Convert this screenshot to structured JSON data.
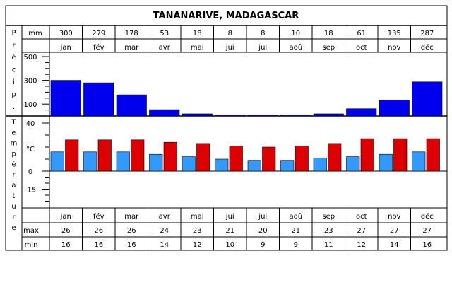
{
  "chart_data": [
    {
      "type": "bar",
      "title": "TANANARIVE, MADAGASCAR",
      "side_label": "Précip.",
      "unit": "mm",
      "categories": [
        "jan",
        "fév",
        "mar",
        "avr",
        "mai",
        "jui",
        "jul",
        "aoû",
        "sep",
        "oct",
        "nov",
        "déc"
      ],
      "values": [
        300,
        279,
        178,
        53,
        18,
        8,
        8,
        10,
        18,
        61,
        135,
        287
      ],
      "yticks": [
        "500",
        "300",
        "100"
      ],
      "ylim": [
        0,
        500
      ],
      "colors": {
        "bar": "#0000ee"
      }
    },
    {
      "type": "bar",
      "side_label": "Température",
      "unit": "°C",
      "categories": [
        "jan",
        "fév",
        "mar",
        "avr",
        "mai",
        "jui",
        "jul",
        "aoû",
        "sep",
        "oct",
        "nov",
        "déc"
      ],
      "yticks": [
        "40",
        "0",
        "-15"
      ],
      "ylim": [
        -30,
        45
      ],
      "series": [
        {
          "name": "min",
          "values": [
            16,
            16,
            16,
            14,
            12,
            10,
            9,
            9,
            11,
            12,
            14,
            16
          ],
          "color": "#3399ff"
        },
        {
          "name": "max",
          "values": [
            26,
            26,
            26,
            24,
            23,
            21,
            20,
            21,
            23,
            27,
            27,
            27
          ],
          "color": "#dd0000"
        }
      ]
    }
  ]
}
